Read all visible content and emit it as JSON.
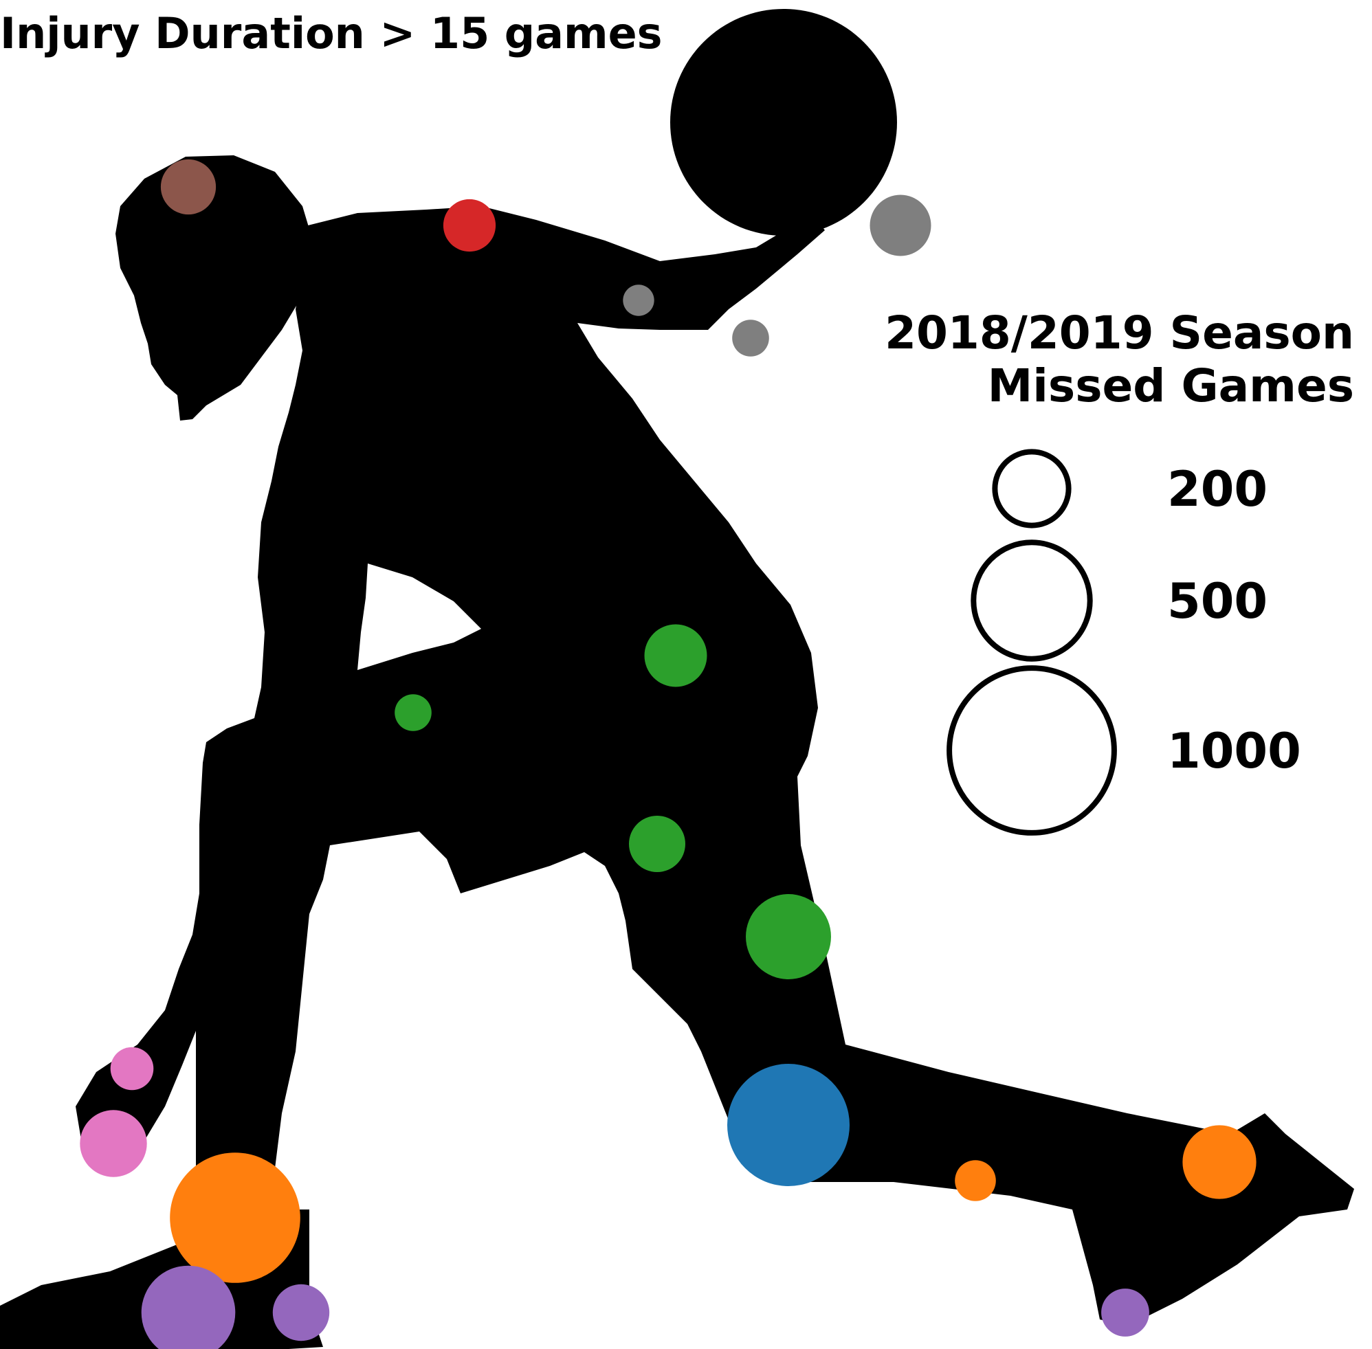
{
  "chart_data": {
    "type": "scatter",
    "title": "Injury Duration > 15 games",
    "legend": {
      "title_line1": "2018/2019 Season",
      "title_line2": "Missed Games",
      "sizes": [
        {
          "value": 200,
          "label": "200"
        },
        {
          "value": 500,
          "label": "500"
        },
        {
          "value": 1000,
          "label": "1000"
        }
      ]
    },
    "points": [
      {
        "body_part": "head",
        "value": 112,
        "color": "#8c564b"
      },
      {
        "body_part": "shoulder",
        "value": 101,
        "color": "#d62728"
      },
      {
        "body_part": "hand",
        "value": 138,
        "color": "#7f7f7f"
      },
      {
        "body_part": "elbow",
        "value": 36,
        "color": "#7f7f7f"
      },
      {
        "body_part": "wrist",
        "value": 50,
        "color": "#7f7f7f"
      },
      {
        "body_part": "hip",
        "value": 144,
        "color": "#2ca02c"
      },
      {
        "body_part": "groin",
        "value": 50,
        "color": "#2ca02c"
      },
      {
        "body_part": "hamstring",
        "value": 117,
        "color": "#2ca02c"
      },
      {
        "body_part": "thigh",
        "value": 268,
        "color": "#2ca02c"
      },
      {
        "body_part": "knee",
        "value": 551,
        "color": "#1f77b4"
      },
      {
        "body_part": "shin",
        "value": 62,
        "color": "#ff7f0e"
      },
      {
        "body_part": "ankle",
        "value": 200,
        "color": "#ff7f0e"
      },
      {
        "body_part": "ankle",
        "value": 625,
        "color": "#ff7f0e"
      },
      {
        "body_part": "finger",
        "value": 68,
        "color": "#e377c2"
      },
      {
        "body_part": "thumb",
        "value": 165,
        "color": "#e377c2"
      },
      {
        "body_part": "foot",
        "value": 325,
        "color": "#9467bd"
      },
      {
        "body_part": "toe",
        "value": 118,
        "color": "#9467bd"
      },
      {
        "body_part": "toe",
        "value": 85,
        "color": "#9467bd"
      }
    ]
  }
}
